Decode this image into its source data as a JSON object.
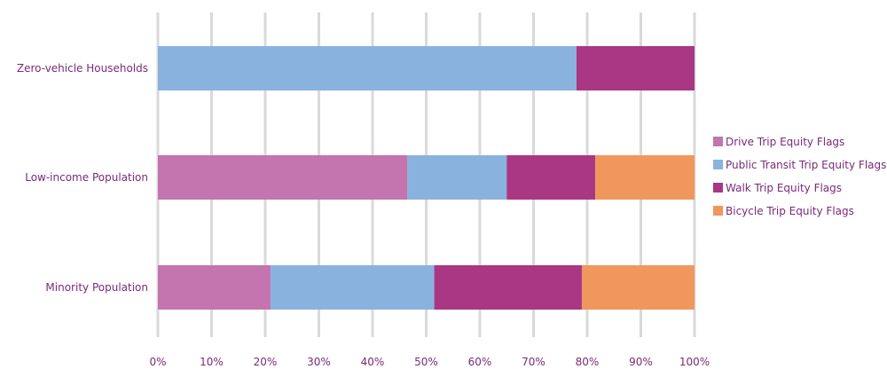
{
  "chart_data": {
    "type": "bar",
    "orientation": "horizontal",
    "stacked": "percent",
    "categories": [
      "Zero-vehicle Households",
      "Low-income Population",
      "Minority Population"
    ],
    "series": [
      {
        "name": "Drive Trip Equity Flags",
        "color": "#c474ae",
        "values": [
          0,
          46.5,
          21
        ]
      },
      {
        "name": "Public Transit Trip Equity Flags",
        "color": "#89b3de",
        "values": [
          78,
          18.5,
          30.5
        ]
      },
      {
        "name": "Walk Trip Equity Flags",
        "color": "#a93783",
        "values": [
          22,
          16.5,
          27.5
        ]
      },
      {
        "name": "Bicycle Trip Equity Flags",
        "color": "#f0975e",
        "values": [
          0,
          18.5,
          21
        ]
      }
    ],
    "x_ticks": [
      "0%",
      "10%",
      "20%",
      "30%",
      "40%",
      "50%",
      "60%",
      "70%",
      "80%",
      "90%",
      "100%"
    ],
    "xlim": [
      0,
      100
    ],
    "grid": "vertical",
    "legend_position": "right"
  }
}
